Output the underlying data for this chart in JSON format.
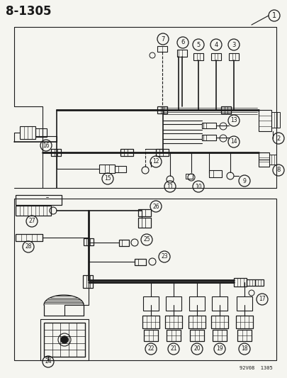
{
  "title": "8-1305",
  "diagram_number": "1",
  "watermark": "92V08  1305",
  "background_color": "#f5f5f0",
  "line_color": "#1a1a1a",
  "figsize": [
    4.05,
    5.33
  ],
  "dpi": 100
}
